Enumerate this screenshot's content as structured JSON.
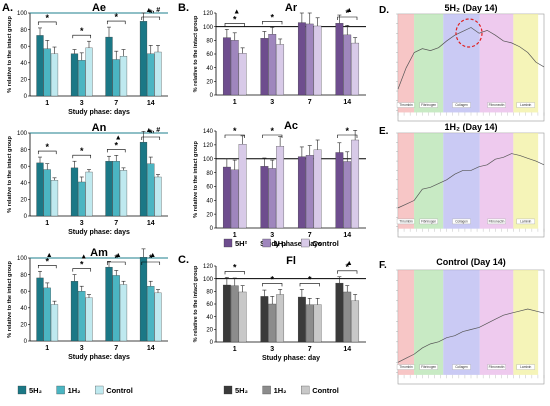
{
  "figure": {
    "palettes": {
      "teal": [
        "#1b7886",
        "#4bb5c2",
        "#bfe9ef"
      ],
      "purple": [
        "#6e4d8e",
        "#9f86bd",
        "#d8cae8"
      ],
      "gray": [
        "#3a3a3a",
        "#8c8c8c",
        "#c8c8c8"
      ]
    },
    "sig_color": "#1e7f8c",
    "legends": {
      "A": {
        "series": [
          "5H₂",
          "1H₂",
          "Control"
        ]
      },
      "B": {
        "series": [
          "5H²",
          "1H₂",
          "Control"
        ]
      },
      "C": {
        "series": [
          "5H₂",
          "1H₂",
          "Control"
        ]
      }
    },
    "spectra": [
      {
        "letter": "E.",
        "title": "1H₂ (Day 14)"
      },
      {
        "letter": "F.",
        "title": "Control (Day 14)"
      },
      {
        "letter": "D.",
        "title": "5H₂ (Day 14)"
      }
    ],
    "spectrum_bands": [
      {
        "label": "Thrombin",
        "color": "#f4b3b3"
      },
      {
        "label": "Fibrinogen",
        "color": "#b5e3b0"
      },
      {
        "label": "Collagen",
        "color": "#b8b8f0"
      },
      {
        "label": "Fibronectin",
        "color": "#e8b8e8"
      },
      {
        "label": "Laminin",
        "color": "#f2f0a0"
      }
    ]
  },
  "chart_data": [
    {
      "id": "Ae",
      "panel_letter": "A.",
      "palette": "teal",
      "type": "bar",
      "title": "Ae",
      "xlabel": "Study phase: days",
      "ylabel": "% relative to the intact group",
      "categories": [
        "1",
        "3",
        "7",
        "14"
      ],
      "series": [
        {
          "name": "5H₂",
          "values": [
            73,
            51,
            71,
            90
          ],
          "errors": [
            9,
            5,
            12,
            10
          ]
        },
        {
          "name": "1H₂",
          "values": [
            57,
            43,
            44,
            51
          ],
          "errors": [
            10,
            9,
            10,
            10
          ]
        },
        {
          "name": "Control",
          "values": [
            51,
            58,
            48,
            53
          ],
          "errors": [
            8,
            8,
            8,
            8
          ]
        }
      ],
      "ylim": [
        0,
        100
      ],
      "yticks": [
        0,
        20,
        40,
        60,
        80,
        100
      ],
      "refline": 100,
      "annotations": {
        "top": [
          {
            "cat": 3,
            "text": "▲, #"
          }
        ],
        "stars": [
          "*",
          "*",
          "*",
          "*"
        ]
      }
    },
    {
      "id": "An",
      "palette": "teal",
      "type": "bar",
      "title": "An",
      "xlabel": "Study phase: days",
      "ylabel": "% relative to the intact group",
      "categories": [
        "1",
        "3",
        "7",
        "14"
      ],
      "series": [
        {
          "name": "5H₂",
          "values": [
            64,
            58,
            66,
            89
          ],
          "errors": [
            7,
            8,
            6,
            13
          ]
        },
        {
          "name": "1H₂",
          "values": [
            56,
            41,
            66,
            63
          ],
          "errors": [
            7,
            6,
            7,
            8
          ]
        },
        {
          "name": "Control",
          "values": [
            43,
            53,
            55,
            47
          ],
          "errors": [
            3,
            3,
            3,
            3
          ]
        }
      ],
      "ylim": [
        0,
        100
      ],
      "yticks": [
        0,
        20,
        40,
        60,
        80,
        100
      ],
      "refline": 100,
      "annotations": {
        "top": [
          {
            "cat": 2,
            "text": "▲"
          },
          {
            "cat": 3,
            "text": "▲, #"
          }
        ],
        "stars": [
          "*",
          "*",
          "*",
          "*"
        ]
      }
    },
    {
      "id": "Am",
      "palette": "teal",
      "type": "bar",
      "title": "Am",
      "xlabel": "Study phase: days",
      "ylabel": "% relative to the intact group",
      "categories": [
        "1",
        "3",
        "7",
        "14"
      ],
      "series": [
        {
          "name": "5H₂",
          "values": [
            76,
            72,
            89,
            101
          ],
          "errors": [
            8,
            8,
            7,
            10
          ]
        },
        {
          "name": "1H₂",
          "values": [
            64,
            60,
            79,
            66
          ],
          "errors": [
            6,
            6,
            6,
            6
          ]
        },
        {
          "name": "Control",
          "values": [
            44,
            52,
            68,
            58
          ],
          "errors": [
            4,
            4,
            4,
            4
          ]
        }
      ],
      "ylim": [
        0,
        100
      ],
      "yticks": [
        0,
        20,
        40,
        60,
        80,
        100
      ],
      "refline": 100,
      "annotations": {
        "top": [
          {
            "cat": 0,
            "text": "▲"
          },
          {
            "cat": 1,
            "text": "▲"
          },
          {
            "cat": 2,
            "text": "▲"
          },
          {
            "cat": 3,
            "text": "▲"
          }
        ],
        "stars": [
          "*",
          "*",
          "*",
          "*"
        ]
      }
    },
    {
      "id": "Ar",
      "panel_letter": "B.",
      "palette": "purple",
      "type": "bar",
      "title": "Ar",
      "xlabel": "",
      "ylabel": "% relative to the intact group",
      "categories": [
        "1",
        "3",
        "7",
        "14"
      ],
      "series": [
        {
          "name": "5H²",
          "values": [
            84,
            83,
            106,
            105
          ],
          "errors": [
            12,
            10,
            14,
            12
          ]
        },
        {
          "name": "1H₂",
          "values": [
            80,
            89,
            104,
            88
          ],
          "errors": [
            11,
            10,
            16,
            14
          ]
        },
        {
          "name": "Control",
          "values": [
            61,
            74,
            101,
            76
          ],
          "errors": [
            8,
            8,
            12,
            8
          ]
        }
      ],
      "ylim": [
        0,
        120
      ],
      "yticks": [
        0,
        20,
        40,
        60,
        80,
        100,
        120
      ],
      "refline": 100,
      "annotations": {
        "top": [
          {
            "cat": 0,
            "text": "▲"
          },
          {
            "cat": 3,
            "text": "▲"
          }
        ],
        "stars": [
          "*",
          "*",
          "",
          "*"
        ]
      }
    },
    {
      "id": "Ac",
      "palette": "purple",
      "type": "bar",
      "title": "Ac",
      "xlabel": "Study phase: days",
      "ylabel": "% relative to the intact group",
      "categories": [
        "1",
        "3",
        "7",
        "14"
      ],
      "series": [
        {
          "name": "5H²",
          "values": [
            88,
            89,
            103,
            109
          ],
          "errors": [
            12,
            12,
            14,
            14
          ]
        },
        {
          "name": "1H₂",
          "values": [
            84,
            86,
            105,
            96
          ],
          "errors": [
            14,
            12,
            14,
            14
          ]
        },
        {
          "name": "Control",
          "values": [
            121,
            118,
            113,
            127
          ],
          "errors": [
            12,
            14,
            14,
            14
          ]
        }
      ],
      "ylim": [
        0,
        140
      ],
      "yticks": [
        0,
        20,
        40,
        60,
        80,
        100,
        120,
        140
      ],
      "refline": 100,
      "annotations": {
        "top": [],
        "stars": [
          "*",
          "*",
          "",
          "*"
        ]
      }
    },
    {
      "id": "Fl",
      "panel_letter": "C.",
      "palette": "gray",
      "type": "bar",
      "title": "Fl",
      "xlabel": "Study phase: day",
      "ylabel": "% relative to the intact group",
      "categories": [
        "1",
        "3",
        "7",
        "14"
      ],
      "series": [
        {
          "name": "5H₂",
          "values": [
            90,
            72,
            71,
            93
          ],
          "errors": [
            12,
            10,
            12,
            10
          ]
        },
        {
          "name": "1H₂",
          "values": [
            89,
            60,
            59,
            79
          ],
          "errors": [
            12,
            12,
            10,
            10
          ]
        },
        {
          "name": "Control",
          "values": [
            79,
            75,
            59,
            65
          ],
          "errors": [
            10,
            8,
            10,
            10
          ]
        }
      ],
      "ylim": [
        0,
        120
      ],
      "yticks": [
        0,
        20,
        40,
        60,
        80,
        100,
        120
      ],
      "refline": 100,
      "annotations": {
        "top": [
          {
            "cat": 3,
            "text": "▲"
          }
        ],
        "stars": [
          "*",
          "*",
          "*",
          "*"
        ]
      }
    }
  ]
}
